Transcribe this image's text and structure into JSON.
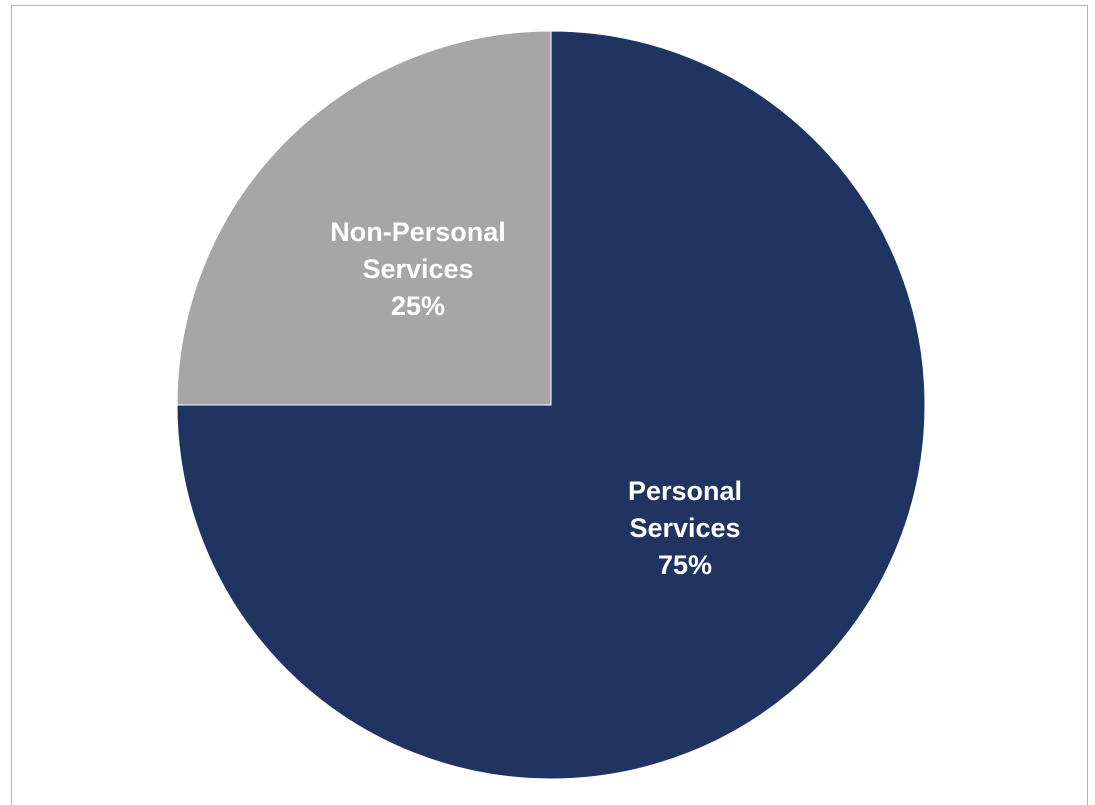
{
  "chart_data": {
    "type": "pie",
    "title": "",
    "slices": [
      {
        "name": "Personal Services",
        "label_lines": [
          "Personal",
          "Services",
          "75%"
        ],
        "value": 75,
        "color": "#1f3461"
      },
      {
        "name": "Non-Personal Services",
        "label_lines": [
          "Non-Personal",
          "Services",
          "25%"
        ],
        "value": 25,
        "color": "#a6a6a6"
      }
    ],
    "start_angle_deg": 0,
    "direction": "clockwise",
    "legend": "none",
    "data_labels": "inside"
  }
}
